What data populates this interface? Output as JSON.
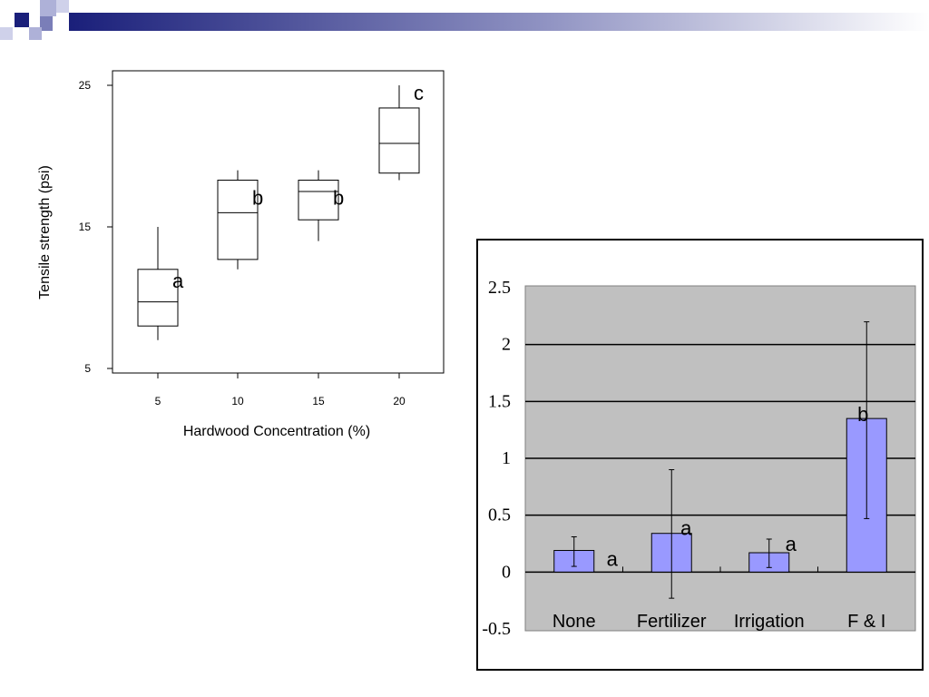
{
  "colors": {
    "navy": "#1a1f7a",
    "bar_fill": "#9999ff",
    "plot_bg": "#c0c0c0"
  },
  "chart_data": [
    {
      "type": "box",
      "xlabel": "Hardwood Concentration (%)",
      "ylabel": "Tensile strength (psi)",
      "ylim": [
        5,
        25
      ],
      "yticks": [
        "5",
        "15",
        "25"
      ],
      "categories": [
        "5",
        "10",
        "15",
        "20"
      ],
      "boxes": [
        {
          "min": 7,
          "q1": 8,
          "median": 9.7,
          "q3": 12,
          "max": 15,
          "letter": "a"
        },
        {
          "min": 12,
          "q1": 12.7,
          "median": 16,
          "q3": 18.3,
          "max": 19,
          "letter": "b"
        },
        {
          "min": 14,
          "q1": 15.5,
          "median": 17.5,
          "q3": 18.3,
          "max": 19,
          "letter": "b"
        },
        {
          "min": 18.3,
          "q1": 18.8,
          "median": 20.9,
          "q3": 23.4,
          "max": 25,
          "letter": "c"
        }
      ],
      "grid": false
    },
    {
      "type": "bar",
      "categories": [
        "None",
        "Fertilizer",
        "Irrigation",
        "F & I"
      ],
      "values": [
        0.19,
        0.34,
        0.17,
        1.35
      ],
      "error_low": [
        0.05,
        -0.23,
        0.04,
        0.47
      ],
      "error_high": [
        0.31,
        0.9,
        0.29,
        2.2
      ],
      "letters": [
        "a",
        "a",
        "a",
        "b"
      ],
      "ylim": [
        -0.5,
        2.5
      ],
      "yticks": [
        "-0.5",
        "0",
        "0.5",
        "1",
        "1.5",
        "2",
        "2.5"
      ],
      "grid": true
    }
  ]
}
